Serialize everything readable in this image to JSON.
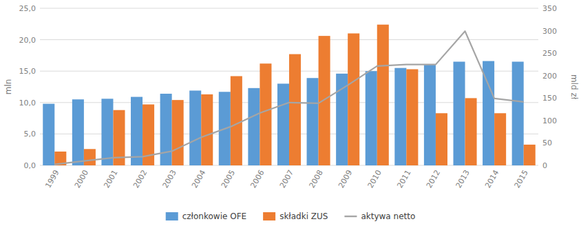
{
  "chart_data": {
    "type": "bar",
    "categories": [
      1999,
      2000,
      2001,
      2002,
      2003,
      2004,
      2005,
      2006,
      2007,
      2008,
      2009,
      2010,
      2011,
      2012,
      2013,
      2014,
      2015
    ],
    "series": [
      {
        "name": "członkowie OFE",
        "type": "bar",
        "color": "#5B9BD5",
        "values": [
          9.8,
          10.5,
          10.6,
          10.9,
          11.4,
          11.9,
          11.7,
          12.3,
          13.0,
          13.9,
          14.6,
          15.0,
          15.5,
          16.0,
          16.5,
          16.6,
          16.5
        ]
      },
      {
        "name": "składki ZUS",
        "type": "bar",
        "color": "#ED7D31",
        "values": [
          2.2,
          2.6,
          8.8,
          9.7,
          10.4,
          11.3,
          14.2,
          16.2,
          17.7,
          20.6,
          21.0,
          22.4,
          15.3,
          8.3,
          10.7,
          8.3,
          3.3
        ]
      },
      {
        "name": "aktywa netto",
        "type": "line",
        "axis": "y2",
        "color": "#A5A5A5",
        "values": [
          2.0,
          9.8,
          17.0,
          19.4,
          31.6,
          62.6,
          86.1,
          116.6,
          140.0,
          138.3,
          178.6,
          221.3,
          224.7,
          224.7,
          299.0,
          149.1,
          141.5
        ]
      }
    ],
    "ylabel": "mln",
    "y2label": "mld zł",
    "ylim": [
      0,
      25
    ],
    "yticks": [
      {
        "value": 0.0,
        "label": "0,0"
      },
      {
        "value": 5.0,
        "label": "5,0"
      },
      {
        "value": 10.0,
        "label": "10,0"
      },
      {
        "value": 15.0,
        "label": "15,0"
      },
      {
        "value": 20.0,
        "label": "20,0"
      },
      {
        "value": 25.0,
        "label": "25,0"
      }
    ],
    "y2lim": [
      0,
      350
    ],
    "y2ticks": [
      0,
      50,
      100,
      150,
      200,
      250,
      300,
      350
    ],
    "grid": true,
    "legend": "bottom"
  }
}
